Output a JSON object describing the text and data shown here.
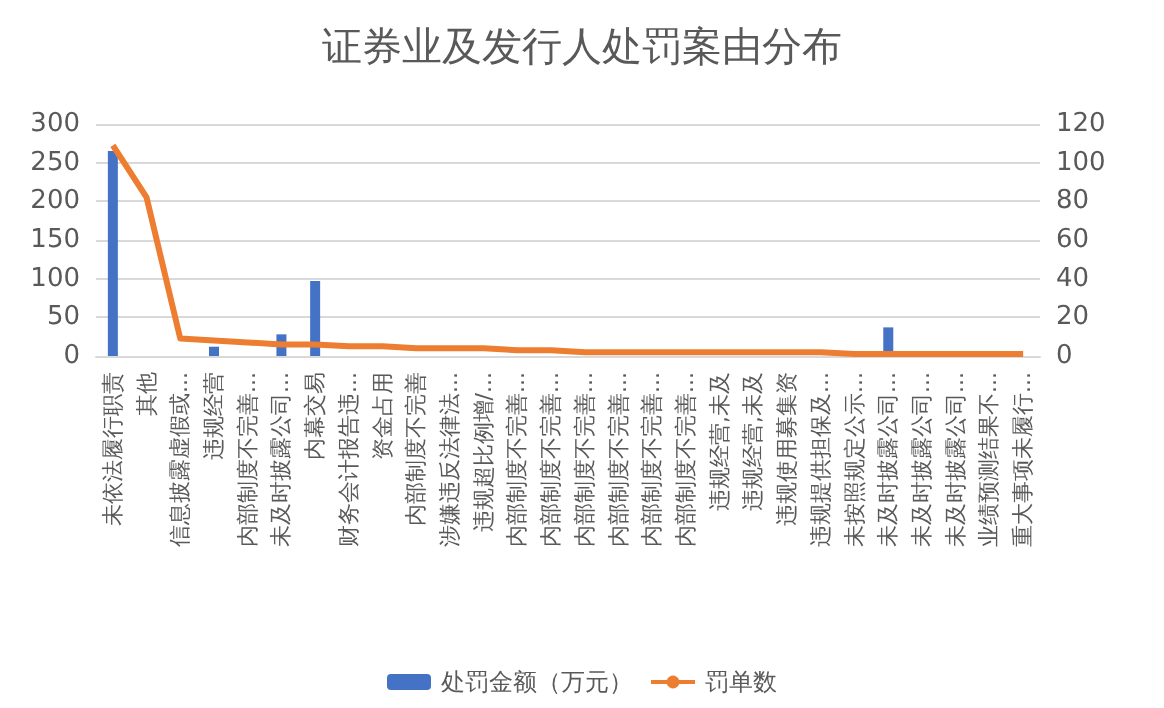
{
  "chart_data": {
    "type": "bar",
    "title": "证券业及发行人处罚案由分布",
    "categories": [
      "未依法履行职责",
      "其他",
      "信息披露虚假或...",
      "违规经营",
      "内部制度不完善...",
      "未及时披露公司...",
      "内幕交易",
      "财务会计报告违...",
      "资金占用",
      "内部制度不完善",
      "涉嫌违反法律法...",
      "违规超比例增/...",
      "内部制度不完善...",
      "内部制度不完善...",
      "内部制度不完善...",
      "内部制度不完善...",
      "内部制度不完善...",
      "内部制度不完善...",
      "违规经营,未及",
      "违规经营,未及",
      "违规使用募集资",
      "违规提供担保及...",
      "未按照规定公示...",
      "未及时披露公司...",
      "未及时披露公司...",
      "未及时披露公司...",
      "业绩预测结果不...",
      "重大事项未履行..."
    ],
    "series": [
      {
        "name": "处罚金额（万元）",
        "color": "#4472c4",
        "values": [
          265,
          0,
          0,
          12,
          0,
          28,
          97,
          0,
          0,
          0,
          0,
          0,
          0,
          0,
          0,
          0,
          0,
          0,
          0,
          0,
          0,
          0,
          0,
          37,
          0,
          0,
          0,
          0
        ]
      },
      {
        "name": "罚单数",
        "type": "line",
        "axis": "y2",
        "color": "#ed7d31",
        "values": [
          109,
          82,
          9,
          8,
          7,
          6,
          6,
          5,
          5,
          4,
          4,
          4,
          3,
          3,
          2,
          2,
          2,
          2,
          2,
          2,
          2,
          2,
          1,
          1,
          1,
          1,
          1,
          1
        ]
      }
    ],
    "ylim": [
      0,
      300
    ],
    "yticks": [
      0,
      50,
      100,
      150,
      200,
      250,
      300
    ],
    "y2lim": [
      0,
      120
    ],
    "y2ticks": [
      0,
      20,
      40,
      60,
      80,
      100,
      120
    ],
    "grid": "y",
    "legend": "bottom",
    "marker": "none"
  }
}
